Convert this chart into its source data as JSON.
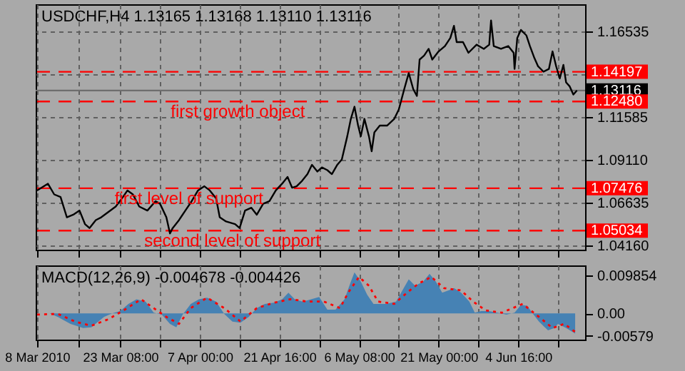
{
  "chart_data": [
    {
      "type": "line",
      "title": "USDCHF,H4  1.13165 1.13168 1.13110 1.13116",
      "color": "#000000",
      "grid": true,
      "tick_labels": "y",
      "x": [
        "2010-03-08T00:00",
        "2010-03-10T00:00",
        "2010-03-11T04:00",
        "2010-03-12T08:00",
        "2010-03-13T12:00",
        "2010-03-14T16:00",
        "2010-03-15T20:00",
        "2010-03-16T20:00",
        "2010-03-17T16:00",
        "2010-03-18T20:00",
        "2010-03-19T20:00",
        "2010-03-21T04:00",
        "2010-03-22T12:00",
        "2010-03-23T20:00",
        "2010-03-24T16:00",
        "2010-03-25T16:00",
        "2010-03-26T20:00",
        "2010-03-28T08:00",
        "2010-03-29T20:00",
        "2010-03-30T16:00",
        "2010-03-31T20:00",
        "2010-04-01T12:00",
        "2010-04-02T00:00",
        "2010-04-03T04:00",
        "2010-04-04T08:00",
        "2010-04-05T12:00",
        "2010-04-06T16:00",
        "2010-04-07T20:00",
        "2010-04-08T20:00",
        "2010-04-10T00:00",
        "2010-04-10T16:00",
        "2010-04-11T20:00",
        "2010-04-13T12:00",
        "2010-04-14T08:00",
        "2010-04-15T08:00",
        "2010-04-16T12:00",
        "2010-04-17T12:00",
        "2010-04-18T16:00",
        "2010-04-19T20:00",
        "2010-04-21T00:00",
        "2010-04-22T04:00",
        "2010-04-23T04:00",
        "2010-04-24T00:00",
        "2010-04-24T20:00",
        "2010-04-25T20:00",
        "2010-04-26T20:00",
        "2010-04-27T16:00",
        "2010-04-28T16:00",
        "2010-04-29T12:00",
        "2010-04-30T12:00",
        "2010-05-01T08:00",
        "2010-05-02T08:00",
        "2010-05-03T04:00",
        "2010-05-04T04:00",
        "2010-05-04T20:00",
        "2010-05-05T12:00",
        "2010-05-06T04:00",
        "2010-05-06T16:00",
        "2010-05-07T08:00",
        "2010-05-08T04:00",
        "2010-05-08T16:00",
        "2010-05-09T04:00",
        "2010-05-10T04:00",
        "2010-05-11T12:00",
        "2010-05-12T20:00",
        "2010-05-13T16:00",
        "2010-05-14T16:00",
        "2010-05-15T12:00",
        "2010-05-16T08:00",
        "2010-05-17T00:00",
        "2010-05-17T12:00",
        "2010-05-18T08:00",
        "2010-05-19T04:00",
        "2010-05-19T20:00",
        "2010-05-21T00:00",
        "2010-05-22T04:00",
        "2010-05-23T04:00",
        "2010-05-23T20:00",
        "2010-05-24T08:00",
        "2010-05-25T12:00",
        "2010-05-26T12:00",
        "2010-05-28T00:00",
        "2010-05-29T08:00",
        "2010-05-30T08:00",
        "2010-05-30T16:00",
        "2010-05-31T04:00",
        "2010-06-01T12:00",
        "2010-06-02T20:00",
        "2010-06-03T20:00",
        "2010-06-04T00:00",
        "2010-06-04T12:00",
        "2010-06-05T04:00",
        "2010-06-06T04:00",
        "2010-06-06T20:00",
        "2010-06-07T16:00",
        "2010-06-08T08:00",
        "2010-06-09T08:00",
        "2010-06-10T08:00",
        "2010-06-11T00:00",
        "2010-06-11T16:00",
        "2010-06-12T08:00",
        "2010-06-13T00:00",
        "2010-06-13T12:00",
        "2010-06-14T04:00",
        "2010-06-14T20:00",
        "2010-06-15T12:00"
      ],
      "values": [
        1.0735,
        1.0774,
        1.0712,
        1.0697,
        1.058,
        1.0595,
        1.0619,
        1.0541,
        1.0518,
        1.0564,
        1.058,
        1.0611,
        1.0642,
        1.0697,
        1.0735,
        1.0712,
        1.0642,
        1.0619,
        1.0673,
        1.0658,
        1.058,
        1.0487,
        1.0518,
        1.0564,
        1.0619,
        1.0673,
        1.0735,
        1.0759,
        1.0735,
        1.0689,
        1.058,
        1.0556,
        1.0541,
        1.0518,
        1.0619,
        1.0635,
        1.0595,
        1.0658,
        1.0673,
        1.0735,
        1.0774,
        1.0813,
        1.0751,
        1.0759,
        1.079,
        1.0829,
        1.0883,
        1.0844,
        1.0868,
        1.0852,
        1.0829,
        1.0883,
        1.0914,
        1.1047,
        1.1148,
        1.1218,
        1.1109,
        1.1047,
        1.1148,
        1.1047,
        1.0961,
        1.107,
        1.1109,
        1.1109,
        1.1148,
        1.1202,
        1.1319,
        1.1412,
        1.1319,
        1.128,
        1.149,
        1.1513,
        1.1552,
        1.149,
        1.1537,
        1.1568,
        1.1615,
        1.1685,
        1.1591,
        1.1591,
        1.1529,
        1.1576,
        1.1552,
        1.1576,
        1.1716,
        1.1568,
        1.1552,
        1.1568,
        1.1529,
        1.1436,
        1.1615,
        1.1661,
        1.163,
        1.1568,
        1.1498,
        1.1451,
        1.142,
        1.1436,
        1.1537,
        1.1451,
        1.1381,
        1.1459,
        1.1358,
        1.1335,
        1.1288,
        1.1312
      ],
      "xlim": [
        "2010-03-07T18:00",
        "2010-06-17T00:00"
      ],
      "xticks": [
        {
          "value": "2010-03-08T00:00",
          "label": null
        },
        {
          "value": "2010-03-15T16:00",
          "label": null
        },
        {
          "value": "2010-03-23T08:00",
          "label": null
        },
        {
          "value": "2010-03-30T16:00",
          "label": null
        },
        {
          "value": "2010-04-07T00:00",
          "label": null
        },
        {
          "value": "2010-04-14T08:00",
          "label": null
        },
        {
          "value": "2010-04-21T16:00",
          "label": null
        },
        {
          "value": "2010-04-29T00:00",
          "label": null
        },
        {
          "value": "2010-05-06T08:00",
          "label": null
        },
        {
          "value": "2010-05-13T16:00",
          "label": null
        },
        {
          "value": "2010-05-21T00:00",
          "label": null
        },
        {
          "value": "2010-05-28T08:00",
          "label": null
        },
        {
          "value": "2010-06-04T16:00",
          "label": null
        },
        {
          "value": "2010-06-12T00:00",
          "label": null
        }
      ],
      "ylim": [
        1.0393,
        1.1809
      ],
      "yticks": [
        {
          "value": 1.0416,
          "label": "1.04160"
        },
        {
          "value": 1.06635,
          "label": "1.06635"
        },
        {
          "value": 1.0911,
          "label": "1.09110"
        },
        {
          "value": 1.11585,
          "label": "1.11585"
        },
        {
          "value": 1.1406,
          "label": null
        },
        {
          "value": 1.16535,
          "label": "1.16535"
        }
      ],
      "ref_lines": [
        {
          "axis": "y",
          "value": 1.14197,
          "label": "1.14197",
          "color": "#ff0000",
          "line_style": "dashed"
        },
        {
          "axis": "y",
          "value": 1.13116,
          "label": "1.13116",
          "color": "#6e6e6e",
          "line_style": "solid"
        },
        {
          "axis": "y",
          "value": 1.1248,
          "label": "1.12480",
          "color": "#ff0000",
          "line_style": "dashed"
        },
        {
          "axis": "y",
          "value": 1.07476,
          "label": "1.07476",
          "color": "#ff0000",
          "line_style": "dashed"
        },
        {
          "axis": "y",
          "value": 1.05034,
          "label": "1.05034",
          "color": "#ff0000",
          "line_style": "dashed"
        }
      ],
      "annotations": [
        {
          "text": "first growth object",
          "x": "2010-04-14T00:00",
          "y": 1.1248
        },
        {
          "text": "first level of support",
          "x": "2010-04-05T00:00",
          "y": 1.07476
        },
        {
          "text": "second level of support",
          "x": "2010-04-13T00:00",
          "y": 1.05034
        }
      ]
    },
    {
      "type": "area",
      "title": "MACD(12,26,9) -0.004678 -0.004426",
      "grid": "x",
      "series": [
        {
          "color": "#4682b4",
          "x": [
            "2010-03-08T00:00",
            "2010-03-10T08:00",
            "2010-03-11T20:00",
            "2010-03-14T04:00",
            "2010-03-16T12:00",
            "2010-03-18T00:00",
            "2010-03-20T08:00",
            "2010-03-21T20:00",
            "2010-03-23T08:00",
            "2010-03-24T20:00",
            "2010-03-26T08:00",
            "2010-03-28T00:00",
            "2010-03-29T12:00",
            "2010-03-31T00:00",
            "2010-04-01T12:00",
            "2010-04-02T16:00",
            "2010-04-03T20:00",
            "2010-04-05T08:00",
            "2010-04-06T20:00",
            "2010-04-08T08:00",
            "2010-04-10T00:00",
            "2010-04-11T12:00",
            "2010-04-13T00:00",
            "2010-04-14T12:00",
            "2010-04-16T00:00",
            "2010-04-17T12:00",
            "2010-04-19T00:00",
            "2010-04-20T16:00",
            "2010-04-22T04:00",
            "2010-04-23T08:00",
            "2010-04-24T12:00",
            "2010-04-26T00:00",
            "2010-04-27T12:00",
            "2010-04-29T00:00",
            "2010-04-30T12:00",
            "2010-05-02T00:00",
            "2010-05-03T16:00",
            "2010-05-04T20:00",
            "2010-05-05T12:00",
            "2010-05-06T16:00",
            "2010-05-07T20:00",
            "2010-05-09T00:00",
            "2010-05-11T08:00",
            "2010-05-13T04:00",
            "2010-05-14T08:00",
            "2010-05-15T12:00",
            "2010-05-16T16:00",
            "2010-05-18T04:00",
            "2010-05-19T08:00",
            "2010-05-20T12:00",
            "2010-05-21T16:00",
            "2010-05-22T20:00",
            "2010-05-23T20:00",
            "2010-05-25T04:00",
            "2010-05-26T16:00",
            "2010-05-27T16:00",
            "2010-05-28T20:00",
            "2010-05-30T08:00",
            "2010-05-31T20:00",
            "2010-06-02T12:00",
            "2010-06-04T00:00",
            "2010-06-05T04:00",
            "2010-06-06T08:00",
            "2010-06-07T08:00",
            "2010-06-08T12:00",
            "2010-06-10T04:00",
            "2010-06-11T08:00",
            "2010-06-12T00:00",
            "2010-06-13T12:00",
            "2010-06-15T04:00"
          ],
          "values": [
            0,
            0,
            -0.0009,
            -0.0027,
            -0.0038,
            -0.0036,
            -0.0009,
            0,
            0.0006,
            0.0025,
            0.0037,
            0.0031,
            0.0002,
            -0.0003,
            -0.0027,
            -0.0036,
            -0.0003,
            0.0025,
            0.0037,
            0.0041,
            0.0031,
            -0.0001,
            -0.0021,
            -0.0024,
            -0.0009,
            0.0014,
            0.0025,
            0.0028,
            0.0037,
            0.0054,
            0.0037,
            0.0031,
            0.0037,
            0.0043,
            0.001,
            0.001,
            0.0037,
            0.0083,
            0.0107,
            0.0083,
            0.0049,
            0.0025,
            0.0025,
            0.0031,
            0.006,
            0.0089,
            0.0072,
            0.0083,
            0.0103,
            0.0083,
            0.0054,
            0.006,
            0.0066,
            0.0054,
            0.0031,
            0.0002,
            0.0006,
            0.0006,
            0.0002,
            -0.0003,
            0.0002,
            0.0022,
            0.002,
            0,
            -0.0021,
            -0.0044,
            -0.0038,
            -0.0027,
            -0.0038,
            -0.0052
          ]
        },
        {
          "type": "line",
          "color": "#ff0000",
          "line_style": "dotted",
          "x": [
            "2010-03-08T00:00",
            "2010-03-11T20:00",
            "2010-03-15T00:00",
            "2010-03-18T00:00",
            "2010-03-21T04:00",
            "2010-03-24T04:00",
            "2010-03-27T04:00",
            "2010-03-29T12:00",
            "2010-03-31T20:00",
            "2010-04-03T04:00",
            "2010-04-05T08:00",
            "2010-04-08T08:00",
            "2010-04-11T12:00",
            "2010-04-14T12:00",
            "2010-04-17T12:00",
            "2010-04-20T16:00",
            "2010-04-23T16:00",
            "2010-04-26T20:00",
            "2010-04-29T20:00",
            "2010-05-02T20:00",
            "2010-05-04T08:00",
            "2010-05-06T08:00",
            "2010-05-08T04:00",
            "2010-05-09T20:00",
            "2010-05-12T20:00",
            "2010-05-15T04:00",
            "2010-05-17T08:00",
            "2010-05-19T16:00",
            "2010-05-22T00:00",
            "2010-05-25T04:00",
            "2010-05-27T08:00",
            "2010-05-29T16:00",
            "2010-06-01T16:00",
            "2010-06-05T12:00",
            "2010-06-08T12:00",
            "2010-06-11T00:00",
            "2010-06-13T04:00",
            "2010-06-15T04:00"
          ],
          "values": [
            -0.0003,
            -0.0001,
            -0.0021,
            -0.0032,
            -0.0015,
            0.001,
            0.0037,
            0.0014,
            -0.0009,
            -0.0027,
            0.0014,
            0.0041,
            0.0014,
            -0.0021,
            0.0014,
            0.0028,
            0.0037,
            0.0031,
            0.0031,
            0.0014,
            0.0054,
            0.0095,
            0.0072,
            0.0031,
            0.0025,
            0.0054,
            0.0078,
            0.0095,
            0.0066,
            0.006,
            0.0031,
            0.0008,
            0.0002,
            0.0025,
            -0.0009,
            -0.0038,
            -0.0027,
            -0.0048
          ]
        }
      ],
      "xlim": [
        "2010-03-07T18:00",
        "2010-06-17T00:00"
      ],
      "xticks": [
        {
          "value": "2010-03-08T00:00",
          "label": "8 Mar 2010"
        },
        {
          "value": "2010-03-15T16:00",
          "label": null
        },
        {
          "value": "2010-03-23T08:00",
          "label": "23 Mar 08:00"
        },
        {
          "value": "2010-03-30T16:00",
          "label": null
        },
        {
          "value": "2010-04-07T00:00",
          "label": "7 Apr 00:00"
        },
        {
          "value": "2010-04-14T08:00",
          "label": null
        },
        {
          "value": "2010-04-21T16:00",
          "label": "21 Apr 16:00"
        },
        {
          "value": "2010-04-29T00:00",
          "label": null
        },
        {
          "value": "2010-05-06T08:00",
          "label": "6 May 08:00"
        },
        {
          "value": "2010-05-13T16:00",
          "label": null
        },
        {
          "value": "2010-05-21T00:00",
          "label": "21 May 00:00"
        },
        {
          "value": "2010-05-28T08:00",
          "label": null
        },
        {
          "value": "2010-06-04T16:00",
          "label": "4 Jun 16:00"
        },
        {
          "value": "2010-06-12T00:00",
          "label": null
        }
      ],
      "ylim": [
        -0.0068,
        0.0125
      ],
      "yticks": [
        {
          "value": -0.00579,
          "label": "-0.00579"
        },
        {
          "value": 0,
          "label": "0.00"
        },
        {
          "value": 0.009854,
          "label": "0.009854"
        }
      ]
    }
  ]
}
